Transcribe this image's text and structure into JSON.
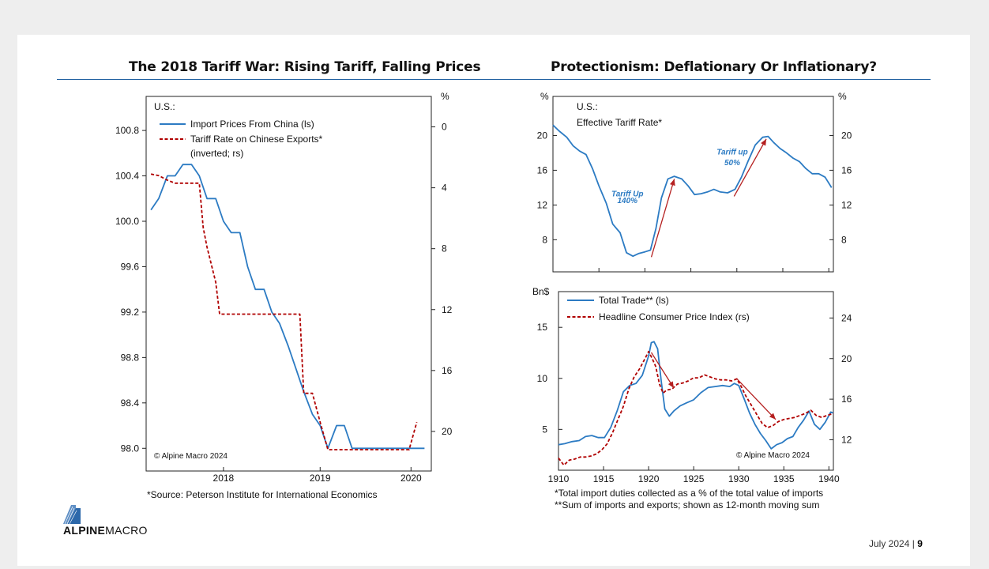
{
  "page": {
    "left_title": "The 2018 Tariff War: Rising Tariff, Falling Prices",
    "right_title": "Protectionism: Deflationary Or Inflationary?",
    "left_source": "*Source: Peterson Institute for International Economics",
    "right_note1": "*Total import duties collected as a % of the total value of imports",
    "right_note2": "**Sum of imports and exports; shown as 12-month moving sum",
    "logo_bold": "ALPINE",
    "logo_rest": "MACRO",
    "footer_date": "July 2024",
    "footer_sep": "|",
    "page_number": "9"
  },
  "chart_data": [
    {
      "type": "line",
      "subtitle": "U.S.:",
      "copyright": "© Alpine Macro 2024",
      "x_ticks": [
        "2018",
        "2019",
        "2020"
      ],
      "left_axis": {
        "ticks": [
          "100.8",
          "100.4",
          "100.0",
          "99.6",
          "99.2",
          "98.8",
          "98.4",
          "98.0"
        ],
        "ylim": [
          97.8,
          101.1
        ]
      },
      "right_axis": {
        "unit": "%",
        "ticks": [
          "0",
          "4",
          "8",
          "12",
          "16",
          "20"
        ],
        "ylim": [
          -2,
          22.6
        ],
        "inverted": true
      },
      "series": [
        {
          "name": "Import Prices From China (ls)",
          "axis": "left",
          "color": "#2c7bc3",
          "dash": false,
          "x": [
            2017.25,
            2017.33,
            2017.42,
            2017.5,
            2017.58,
            2017.67,
            2017.75,
            2017.83,
            2017.92,
            2018.0,
            2018.08,
            2018.17,
            2018.25,
            2018.33,
            2018.42,
            2018.5,
            2018.58,
            2018.67,
            2018.75,
            2018.83,
            2018.92,
            2019.0,
            2019.08,
            2019.17,
            2019.25,
            2019.33,
            2019.42,
            2019.5,
            2019.58,
            2019.67,
            2019.75,
            2019.83,
            2019.92,
            2020.0,
            2020.08
          ],
          "y": [
            100.1,
            100.2,
            100.4,
            100.4,
            100.5,
            100.5,
            100.4,
            100.2,
            100.2,
            100.0,
            99.9,
            99.9,
            99.6,
            99.4,
            99.4,
            99.2,
            99.1,
            98.9,
            98.7,
            98.5,
            98.3,
            98.2,
            98.0,
            98.2,
            98.2,
            98.0,
            98.0,
            98.0,
            98.0,
            98.0,
            98.0,
            98.0,
            98.0,
            98.0,
            98.0
          ]
        },
        {
          "name": "Tariff Rate on Chinese Exports* (inverted; rs)",
          "axis": "right",
          "color": "#b00000",
          "dash": true,
          "x": [
            2017.25,
            2017.33,
            2017.42,
            2017.5,
            2017.58,
            2017.67,
            2017.75,
            2017.79,
            2017.83,
            2017.92,
            2017.96,
            2018.0,
            2018.08,
            2018.17,
            2018.25,
            2018.33,
            2018.42,
            2018.5,
            2018.58,
            2018.67,
            2018.71,
            2018.79,
            2018.83,
            2018.92,
            2019.0,
            2019.08,
            2019.17,
            2019.25,
            2019.33,
            2019.42,
            2019.5,
            2019.58,
            2019.67,
            2019.75,
            2019.83,
            2019.92,
            2020.0
          ],
          "y": [
            3.1,
            3.2,
            3.5,
            3.7,
            3.7,
            3.7,
            3.7,
            6.6,
            7.9,
            10.2,
            12.3,
            12.3,
            12.3,
            12.3,
            12.3,
            12.3,
            12.3,
            12.3,
            12.3,
            12.3,
            12.3,
            12.3,
            17.5,
            17.5,
            19.4,
            21.2,
            21.2,
            21.2,
            21.2,
            21.2,
            21.2,
            21.2,
            21.2,
            21.2,
            21.2,
            21.2,
            19.4
          ]
        }
      ]
    },
    {
      "type": "line",
      "subtitle": "U.S.:",
      "y_unit_left": "%",
      "y_unit_right": "%",
      "x_range": [
        1910,
        1940.5
      ],
      "ylim": [
        4.3,
        24.5
      ],
      "ticks_left": [
        "20",
        "16",
        "12",
        "8"
      ],
      "ticks_right": [
        "20",
        "16",
        "12",
        "8"
      ],
      "series": [
        {
          "name": "Effective Tariff Rate*",
          "color": "#2c7bc3",
          "x": [
            1910,
            1910.7,
            1911.5,
            1912.2,
            1912.9,
            1913.6,
            1914.3,
            1915,
            1915.8,
            1916.5,
            1917.3,
            1918,
            1918.7,
            1919.3,
            1920,
            1920.6,
            1921.2,
            1921.8,
            1922.5,
            1923.2,
            1924,
            1924.7,
            1925.4,
            1926.1,
            1926.8,
            1927.5,
            1928.2,
            1929,
            1929.8,
            1930.5,
            1931.2,
            1932,
            1932.8,
            1933.4,
            1934,
            1934.7,
            1935.4,
            1936.1,
            1936.8,
            1937.5,
            1938.2,
            1938.9,
            1939.6,
            1940.3
          ],
          "y": [
            21.2,
            20.5,
            19.8,
            18.8,
            18.2,
            17.8,
            16.2,
            14.2,
            12.2,
            9.8,
            8.8,
            6.5,
            6.1,
            6.4,
            6.6,
            6.8,
            9.3,
            12.8,
            15.0,
            15.3,
            15.0,
            14.2,
            13.2,
            13.3,
            13.5,
            13.8,
            13.5,
            13.4,
            13.8,
            15.2,
            17.0,
            18.9,
            19.8,
            19.9,
            19.2,
            18.5,
            18.0,
            17.4,
            17.0,
            16.2,
            15.6,
            15.6,
            15.2,
            14.0
          ]
        },
        {
          "name": "Trend arrow 1",
          "color": "#b52020",
          "x": [
            1920.7,
            1923.2
          ],
          "y": [
            6.0,
            15.0
          ]
        },
        {
          "name": "Trend arrow 2",
          "color": "#b52020",
          "x": [
            1929.7,
            1933.2
          ],
          "y": [
            13.0,
            19.6
          ]
        }
      ],
      "annotations": [
        {
          "text": "Tariff Up",
          "x": 1918.1,
          "y": 13.0
        },
        {
          "text": "140%",
          "x": 1918.1,
          "y": 12.2
        },
        {
          "text": "Tariff up",
          "x": 1929.5,
          "y": 17.8
        },
        {
          "text": "50%",
          "x": 1929.5,
          "y": 16.6
        }
      ]
    },
    {
      "type": "line",
      "y_unit_left": "Bn$",
      "copyright": "© Alpine Macro 2024",
      "x_ticks": [
        "1910",
        "1915",
        "1920",
        "1925",
        "1930",
        "1935",
        "1940"
      ],
      "x_range": [
        1910,
        1940.5
      ],
      "left_axis": {
        "ticks": [
          "15",
          "10",
          "5"
        ],
        "ylim": [
          1.0,
          18.5
        ]
      },
      "right_axis": {
        "ticks": [
          "24",
          "20",
          "16",
          "12"
        ],
        "ylim": [
          9.0,
          26.6
        ]
      },
      "series": [
        {
          "name": "Total Trade** (ls)",
          "axis": "left",
          "color": "#2c7bc3",
          "dash": false,
          "x": [
            1910,
            1910.7,
            1911.5,
            1912.3,
            1913,
            1913.7,
            1914.4,
            1915.1,
            1915.8,
            1916.5,
            1917.2,
            1917.9,
            1918.6,
            1919.3,
            1920,
            1920.3,
            1920.6,
            1921,
            1921.4,
            1921.8,
            1922.3,
            1922.8,
            1923.5,
            1924.2,
            1925,
            1925.8,
            1926.6,
            1927.4,
            1928.2,
            1929,
            1929.5,
            1930,
            1930.6,
            1931.2,
            1931.8,
            1932.4,
            1933,
            1933.6,
            1934.2,
            1934.8,
            1935.4,
            1936,
            1936.6,
            1937.2,
            1937.8,
            1938.4,
            1939,
            1939.6,
            1940.2,
            1940.5
          ],
          "y": [
            3.5,
            3.6,
            3.8,
            3.9,
            4.3,
            4.4,
            4.2,
            4.2,
            5.2,
            6.8,
            8.7,
            9.3,
            9.5,
            10.3,
            12.2,
            13.5,
            13.6,
            12.9,
            9.7,
            7.0,
            6.3,
            6.8,
            7.3,
            7.6,
            7.9,
            8.6,
            9.1,
            9.2,
            9.3,
            9.2,
            9.5,
            9.3,
            8.0,
            6.6,
            5.5,
            4.6,
            3.9,
            3.1,
            3.5,
            3.7,
            4.1,
            4.3,
            5.2,
            5.9,
            6.8,
            5.5,
            5.0,
            5.7,
            6.7,
            6.6
          ]
        },
        {
          "name": "Headline Consumer Price Index (rs)",
          "axis": "right",
          "color": "#b00000",
          "dash": true,
          "x": [
            1910,
            1910.6,
            1911.2,
            1911.8,
            1912.4,
            1913,
            1913.6,
            1914.2,
            1914.8,
            1915.4,
            1916,
            1916.6,
            1917.2,
            1917.8,
            1918.4,
            1919,
            1919.6,
            1920,
            1920.4,
            1920.8,
            1921.2,
            1921.6,
            1922,
            1922.6,
            1923.2,
            1923.8,
            1924.4,
            1925,
            1925.6,
            1926.2,
            1926.8,
            1927.4,
            1928,
            1928.6,
            1929.2,
            1929.8,
            1930.3,
            1930.8,
            1931.4,
            1932,
            1932.6,
            1933.2,
            1933.8,
            1934.4,
            1935,
            1935.6,
            1936.2,
            1936.8,
            1937.4,
            1938,
            1938.6,
            1939.2,
            1939.8,
            1940.5
          ],
          "y": [
            10.2,
            9.5,
            10.0,
            10.1,
            10.3,
            10.3,
            10.4,
            10.6,
            11.0,
            11.6,
            12.7,
            14.0,
            15.3,
            17.0,
            18.2,
            19.0,
            20.0,
            20.7,
            20.0,
            19.2,
            17.5,
            16.6,
            16.9,
            17.0,
            17.5,
            17.6,
            17.8,
            18.1,
            18.1,
            18.4,
            18.2,
            18.0,
            17.9,
            17.9,
            17.8,
            18.0,
            17.2,
            16.3,
            15.4,
            14.5,
            13.6,
            13.2,
            13.4,
            13.8,
            14.0,
            14.1,
            14.2,
            14.4,
            14.6,
            14.9,
            14.4,
            14.2,
            14.4,
            14.6
          ]
        },
        {
          "name": "Trend arrow 1",
          "axis": "right",
          "color": "#b52020",
          "x": [
            1920.3,
            1922.8
          ],
          "y": [
            20.6,
            17.1
          ]
        },
        {
          "name": "Trend arrow 2",
          "axis": "right",
          "color": "#b52020",
          "x": [
            1929.8,
            1934.1
          ],
          "y": [
            18.0,
            14.0
          ]
        }
      ]
    }
  ]
}
